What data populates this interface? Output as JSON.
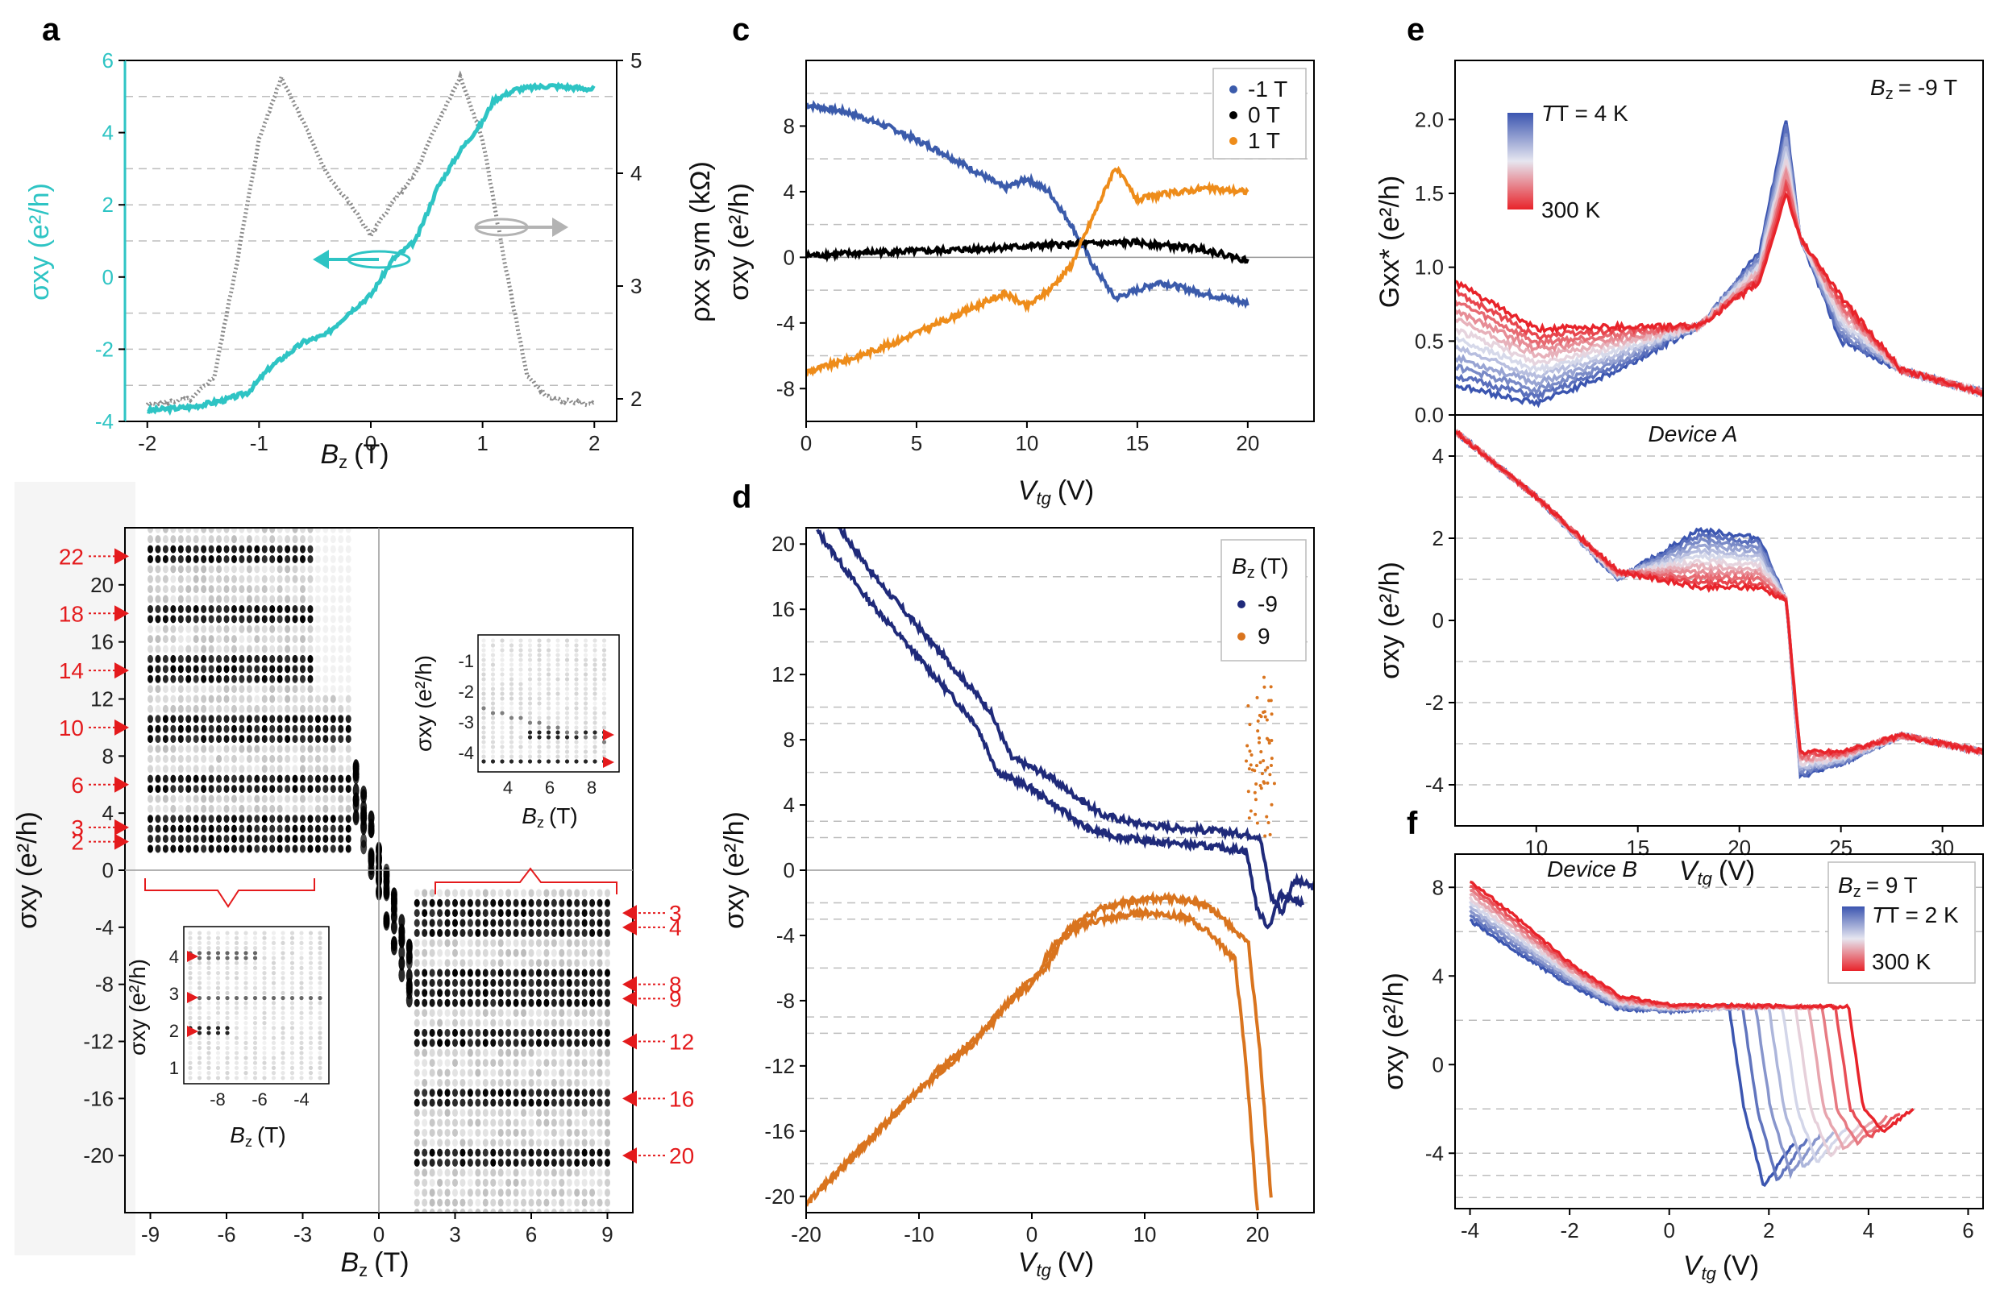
{
  "chart_data": [
    {
      "panel": "a",
      "type": "line",
      "xlabel": "B",
      "xlabel_sub": "z",
      "xlabel_unit": "(T)",
      "ylabel": "σxy (e²/h)",
      "y2label": "ρxx sym (kΩ)",
      "xlim": [
        -2.2,
        2.2
      ],
      "ylim": [
        -4,
        6
      ],
      "y2lim": [
        1.8,
        5
      ],
      "xticks": [
        "-2",
        "-1",
        "0",
        "1",
        "2"
      ],
      "yticks": [
        "-4",
        "-2",
        "0",
        "2",
        "4",
        "6"
      ],
      "y2ticks": [
        "2",
        "3",
        "4",
        "5"
      ],
      "series": [
        {
          "name": "σxy",
          "color": "#2ec4c4",
          "x": [
            -2,
            -1.6,
            -1.3,
            -1.1,
            -0.9,
            -0.6,
            -0.4,
            -0.2,
            0,
            0.2,
            0.4,
            0.6,
            0.8,
            1.0,
            1.1,
            1.3,
            1.6,
            2.0
          ],
          "y": [
            -3.7,
            -3.6,
            -3.4,
            -3.2,
            -2.5,
            -1.8,
            -1.6,
            -1.0,
            -0.5,
            0.5,
            1.0,
            2.5,
            3.5,
            4.3,
            4.9,
            5.2,
            5.3,
            5.2
          ]
        },
        {
          "name": "ρxx sym",
          "color": "#8c8c8c",
          "x": [
            -2,
            -1.6,
            -1.4,
            -1.2,
            -1.0,
            -0.8,
            -0.6,
            -0.4,
            -0.2,
            0,
            0.2,
            0.4,
            0.6,
            0.8,
            1.0,
            1.2,
            1.4,
            1.6,
            2.0
          ],
          "y": [
            1.95,
            2.0,
            2.2,
            3.2,
            4.3,
            4.85,
            4.45,
            4.0,
            3.75,
            3.45,
            3.75,
            4.0,
            4.45,
            4.85,
            4.3,
            3.2,
            2.2,
            2.0,
            1.95
          ]
        }
      ]
    },
    {
      "panel": "b",
      "type": "heatmap",
      "xlabel": "B",
      "xlabel_sub": "z",
      "xlabel_unit": "(T)",
      "ylabel": "σxy (e²/h)",
      "xlim": [
        -10,
        10
      ],
      "ylim": [
        -24,
        24
      ],
      "xticks": [
        "-9",
        "-6",
        "-3",
        "0",
        "3",
        "6",
        "9"
      ],
      "yticks": [
        "-20",
        "-16",
        "-12",
        "-8",
        "-4",
        "0",
        "4",
        "8",
        "12",
        "16",
        "20"
      ],
      "plateaus_left": [
        "22",
        "18",
        "14",
        "10",
        "6",
        "3",
        "2"
      ],
      "plateaus_right": [
        "3",
        "4",
        "8",
        "9",
        "12",
        "16",
        "20"
      ],
      "inset_right": {
        "xlabel": "B",
        "xlabel_sub": "z",
        "xlabel_unit": "(T)",
        "ylabel": "σxy (e²/h)",
        "xticks": [
          "4",
          "6",
          "8"
        ],
        "yticks": [
          "-1",
          "-2",
          "-3",
          "-4"
        ]
      },
      "inset_left": {
        "xlabel": "B",
        "xlabel_sub": "z",
        "xlabel_unit": "(T)",
        "ylabel": "σxy (e²/h)",
        "xticks": [
          "-8",
          "-6",
          "-4"
        ],
        "yticks": [
          "4",
          "3",
          "2",
          "1"
        ]
      }
    },
    {
      "panel": "c",
      "type": "line",
      "xlabel": "V",
      "xlabel_sub": "tg",
      "xlabel_unit": "(V)",
      "ylabel": "σxy (e²/h)",
      "xlim": [
        0,
        23
      ],
      "ylim": [
        -10,
        12
      ],
      "xticks": [
        "0",
        "5",
        "10",
        "15",
        "20"
      ],
      "yticks": [
        "-8",
        "-4",
        "0",
        "4",
        "8"
      ],
      "legend": [
        "-1 T",
        "0 T",
        "1 T"
      ],
      "series": [
        {
          "name": "-1 T",
          "color": "#3b5bab",
          "x": [
            0,
            2,
            4,
            6,
            8,
            9,
            10,
            11,
            12,
            13,
            14,
            16,
            18,
            20
          ],
          "y": [
            9.3,
            8.8,
            7.8,
            6.5,
            5.0,
            4.2,
            4.8,
            4.0,
            2.0,
            -0.5,
            -2.5,
            -1.5,
            -2.2,
            -2.8
          ]
        },
        {
          "name": "0 T",
          "color": "#000000",
          "x": [
            0,
            3,
            6,
            9,
            12,
            15,
            18,
            20
          ],
          "y": [
            0.1,
            0.3,
            0.4,
            0.6,
            0.8,
            0.9,
            0.5,
            -0.2
          ]
        },
        {
          "name": "1 T",
          "color": "#ee8c1a",
          "x": [
            0,
            2,
            4,
            6,
            8,
            9,
            10,
            11,
            12,
            13,
            14,
            15,
            16,
            18,
            20
          ],
          "y": [
            -7.0,
            -6.2,
            -5.2,
            -4.0,
            -2.8,
            -2.2,
            -3.0,
            -2.0,
            -0.5,
            2.5,
            5.5,
            3.5,
            3.8,
            4.2,
            4.0
          ]
        }
      ]
    },
    {
      "panel": "d",
      "type": "line",
      "xlabel": "V",
      "xlabel_sub": "tg",
      "xlabel_unit": "(V)",
      "ylabel": "σxy (e²/h)",
      "xlim": [
        -20,
        25
      ],
      "ylim": [
        -21,
        21
      ],
      "xticks": [
        "-20",
        "-10",
        "0",
        "10",
        "20"
      ],
      "yticks": [
        "-20",
        "-16",
        "-12",
        "-8",
        "-4",
        "0",
        "4",
        "8",
        "12",
        "16",
        "20"
      ],
      "legend_title": "B",
      "legend_title_sub": "z",
      "legend_title_unit": "(T)",
      "legend": [
        "-9",
        "9"
      ],
      "series": [
        {
          "name": "-9",
          "color": "#1f2a7a",
          "x": [
            -19,
            -15,
            -10,
            -5,
            -3,
            0,
            3,
            5,
            8,
            10,
            15,
            19,
            20,
            21,
            22,
            24
          ],
          "y": [
            20.8,
            17.0,
            13.0,
            9.0,
            6.0,
            5.0,
            3.5,
            2.5,
            2.0,
            1.8,
            1.5,
            1.2,
            -2.5,
            -3.5,
            -1.5,
            -2.0
          ]
        },
        {
          "name": "9",
          "color": "#d9741e",
          "x": [
            -20,
            -15,
            -10,
            -5,
            -2,
            0,
            2,
            5,
            8,
            10,
            12,
            14,
            16,
            18,
            19,
            20
          ],
          "y": [
            -20.5,
            -17.0,
            -13.5,
            -10.5,
            -8.0,
            -7.0,
            -4.5,
            -3.2,
            -2.8,
            -2.6,
            -2.7,
            -3.0,
            -4.0,
            -5.5,
            -12.0,
            -21.0
          ]
        }
      ]
    },
    {
      "panel": "e",
      "type": "line",
      "xlabel": "V",
      "xlabel_sub": "tg",
      "xlabel_unit": "(V)",
      "ylabel_top": "Gxx* (e²/h)",
      "ylabel_bottom": "σxy (e²/h)",
      "xlim": [
        6,
        32
      ],
      "ylim_top": [
        0,
        2.4
      ],
      "ylim_bottom": [
        -5,
        5
      ],
      "xticks": [
        "10",
        "15",
        "20",
        "25",
        "30"
      ],
      "yticks_top": [
        "0.0",
        "0.5",
        "1.0",
        "1.5",
        "2.0"
      ],
      "yticks_bottom": [
        "-4",
        "-2",
        "0",
        "2",
        "4"
      ],
      "annotation_field": "B",
      "annotation_field_sub": "z",
      "annotation_field_value": "= -9 T",
      "annotation_device": "Device A",
      "colorbar_top": "T = 4 K",
      "colorbar_bottom": "300 K",
      "color_low": "#3b55b0",
      "color_high": "#e8232a"
    },
    {
      "panel": "f",
      "type": "line",
      "xlabel": "V",
      "xlabel_sub": "tg",
      "xlabel_unit": "(V)",
      "ylabel": "σxy (e²/h)",
      "xlim": [
        -4.3,
        6.3
      ],
      "ylim": [
        -6.5,
        9.5
      ],
      "xticks": [
        "-4",
        "-2",
        "0",
        "2",
        "4",
        "6"
      ],
      "yticks": [
        "-4",
        "0",
        "4",
        "8"
      ],
      "annotation_device": "Device B",
      "legend_field": "B",
      "legend_field_sub": "z",
      "legend_field_value": "= 9 T",
      "colorbar_top": "T = 2 K",
      "colorbar_bottom": "300 K"
    }
  ],
  "panel_labels": [
    "a",
    "b",
    "c",
    "d",
    "e",
    "f"
  ]
}
